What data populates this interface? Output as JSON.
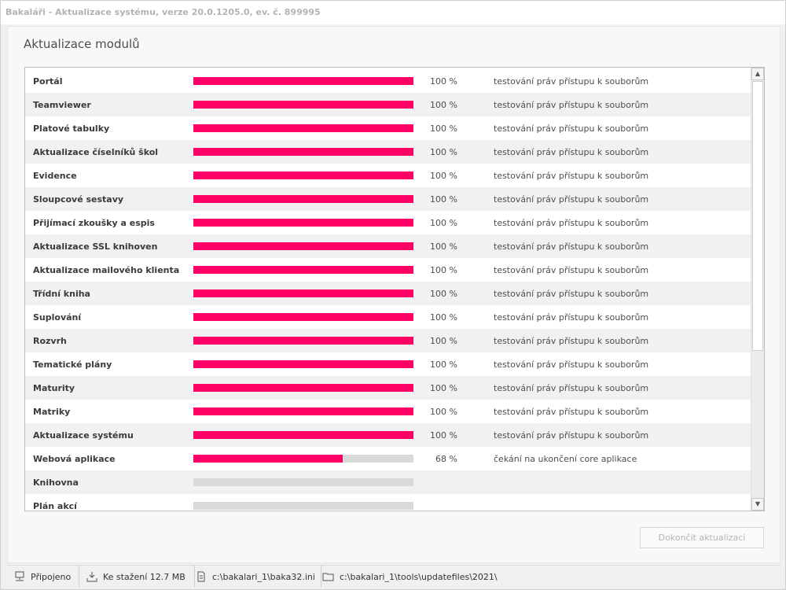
{
  "window": {
    "title": "Bakaláři - Aktualizace systému, verze 20.0.1205.0, ev. č. 899995"
  },
  "heading": "Aktualizace modulů",
  "accent_color": "#ff0066",
  "modules": [
    {
      "name": "Portál",
      "progress": 100,
      "percent": "100 %",
      "status": "testování práv přístupu k souborům"
    },
    {
      "name": "Teamviewer",
      "progress": 100,
      "percent": "100 %",
      "status": "testování práv přístupu k souborům"
    },
    {
      "name": "Platové tabulky",
      "progress": 100,
      "percent": "100 %",
      "status": "testování práv přístupu k souborům"
    },
    {
      "name": "Aktualizace číselníků škol",
      "progress": 100,
      "percent": "100 %",
      "status": "testování práv přístupu k souborům"
    },
    {
      "name": "Evidence",
      "progress": 100,
      "percent": "100 %",
      "status": "testování práv přístupu k souborům"
    },
    {
      "name": "Sloupcové sestavy",
      "progress": 100,
      "percent": "100 %",
      "status": "testování práv přístupu k souborům"
    },
    {
      "name": "Přijímací zkoušky a espis",
      "progress": 100,
      "percent": "100 %",
      "status": "testování práv přístupu k souborům"
    },
    {
      "name": "Aktualizace SSL knihoven",
      "progress": 100,
      "percent": "100 %",
      "status": "testování práv přístupu k souborům"
    },
    {
      "name": "Aktualizace mailového klienta",
      "progress": 100,
      "percent": "100 %",
      "status": "testování práv přístupu k souborům"
    },
    {
      "name": "Třídní kniha",
      "progress": 100,
      "percent": "100 %",
      "status": "testování práv přístupu k souborům"
    },
    {
      "name": "Suplování",
      "progress": 100,
      "percent": "100 %",
      "status": "testování práv přístupu k souborům"
    },
    {
      "name": "Rozvrh",
      "progress": 100,
      "percent": "100 %",
      "status": "testování práv přístupu k souborům"
    },
    {
      "name": "Tematické plány",
      "progress": 100,
      "percent": "100 %",
      "status": "testování práv přístupu k souborům"
    },
    {
      "name": "Maturity",
      "progress": 100,
      "percent": "100 %",
      "status": "testování práv přístupu k souborům"
    },
    {
      "name": "Matriky",
      "progress": 100,
      "percent": "100 %",
      "status": "testování práv přístupu k souborům"
    },
    {
      "name": "Aktualizace systému",
      "progress": 100,
      "percent": "100 %",
      "status": "testování práv přístupu k souborům"
    },
    {
      "name": "Webová aplikace",
      "progress": 68,
      "percent": "68 %",
      "status": "čekání na ukončení core aplikace"
    },
    {
      "name": "Knihovna",
      "progress": 0,
      "percent": "",
      "status": ""
    },
    {
      "name": "Plán akcí",
      "progress": 0,
      "percent": "",
      "status": ""
    }
  ],
  "finish_button": "Dokončit aktualizaci",
  "statusbar": {
    "connection": "Připojeno",
    "download": "Ke stažení 12.7 MB",
    "ini_path": "c:\\bakalari_1\\baka32.ini",
    "update_path": "c:\\bakalari_1\\tools\\updatefiles\\2021\\"
  }
}
